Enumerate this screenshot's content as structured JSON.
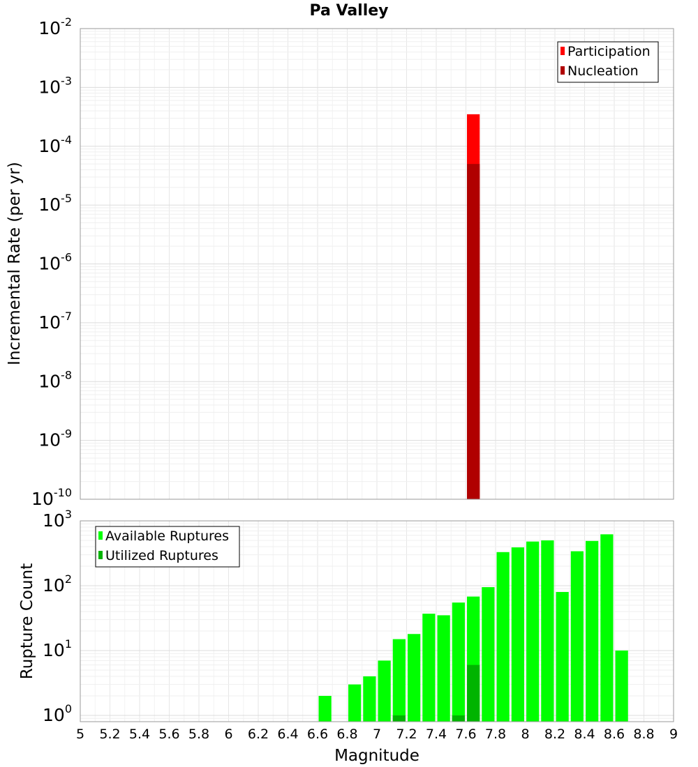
{
  "title": "Pa Valley",
  "chart_data": [
    {
      "type": "bar",
      "ylabel": "Incremental Rate (per yr)",
      "xlabel": "",
      "yscale": "log",
      "xlim": [
        5,
        9
      ],
      "ylim": [
        1e-10,
        0.01
      ],
      "ytick_exponents": [
        -10,
        -9,
        -8,
        -7,
        -6,
        -5,
        -4,
        -3,
        -2
      ],
      "bin_width": 0.1,
      "legend_position": "top-right",
      "series": [
        {
          "name": "Participation",
          "color": "#ff0000",
          "x": [
            7.65
          ],
          "values": [
            0.00035
          ]
        },
        {
          "name": "Nucleation",
          "color": "#b00000",
          "x": [
            7.65
          ],
          "values": [
            5e-05
          ]
        }
      ]
    },
    {
      "type": "bar",
      "ylabel": "Rupture Count",
      "xlabel": "Magnitude",
      "yscale": "log",
      "xlim": [
        5,
        9
      ],
      "ylim": [
        0.8,
        1000
      ],
      "ytick_exponents": [
        0,
        1,
        2,
        3
      ],
      "bin_width": 0.1,
      "legend_position": "top-left",
      "series": [
        {
          "name": "Available Ruptures",
          "color": "#00ff00",
          "x": [
            6.65,
            6.85,
            6.95,
            7.05,
            7.15,
            7.25,
            7.35,
            7.45,
            7.55,
            7.65,
            7.75,
            7.85,
            7.95,
            8.05,
            8.15,
            8.25,
            8.35,
            8.45,
            8.55,
            8.65
          ],
          "values": [
            2,
            3,
            4,
            7,
            15,
            18,
            37,
            35,
            55,
            68,
            95,
            330,
            390,
            480,
            500,
            80,
            340,
            490,
            620,
            10
          ]
        },
        {
          "name": "Utilized Ruptures",
          "color": "#00b400",
          "x": [
            7.15,
            7.55,
            7.65
          ],
          "values": [
            1,
            1,
            6
          ]
        }
      ]
    }
  ],
  "x_ticks": [
    "5",
    "5.2",
    "5.4",
    "5.6",
    "5.8",
    "6",
    "6.2",
    "6.4",
    "6.6",
    "6.8",
    "7",
    "7.2",
    "7.4",
    "7.6",
    "7.8",
    "8",
    "8.2",
    "8.4",
    "8.6",
    "8.8",
    "9"
  ],
  "y_tick_base": "10"
}
